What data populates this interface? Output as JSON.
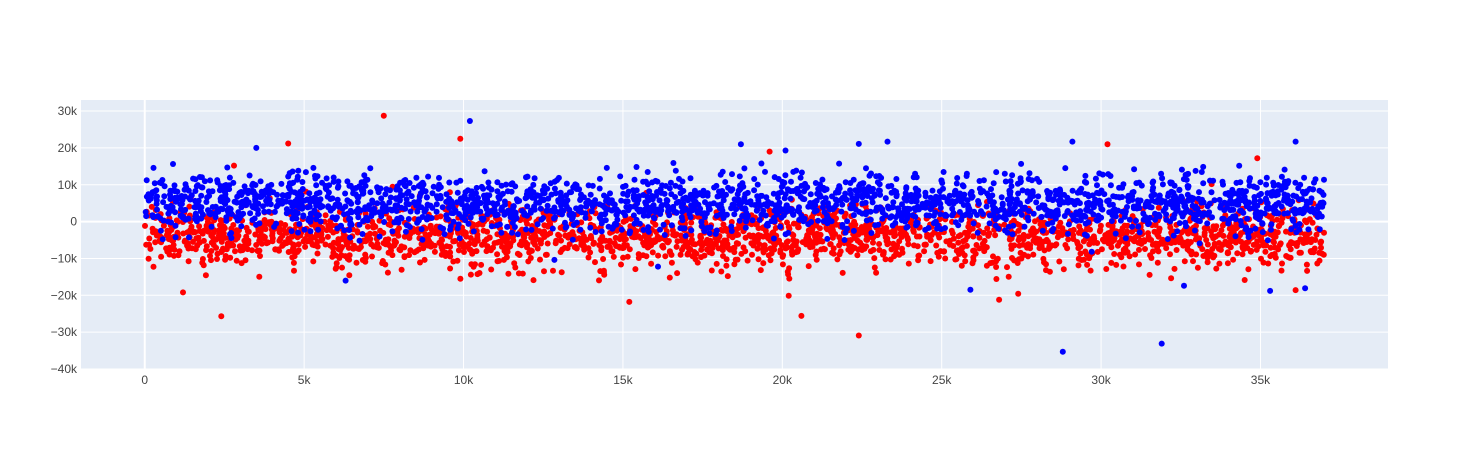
{
  "chart_data": {
    "type": "scatter",
    "title": "",
    "xlabel": "",
    "ylabel": "",
    "xlim": [
      -2000,
      39000
    ],
    "ylim": [
      -40000,
      33000
    ],
    "x_ticks": [
      0,
      5000,
      10000,
      15000,
      20000,
      25000,
      30000,
      35000
    ],
    "x_tick_labels": [
      "0",
      "5k",
      "10k",
      "15k",
      "20k",
      "25k",
      "30k",
      "35k"
    ],
    "y_ticks": [
      -40000,
      -30000,
      -20000,
      -10000,
      0,
      10000,
      20000,
      30000
    ],
    "y_tick_labels": [
      "−40k",
      "−30k",
      "−20k",
      "−10k",
      "0",
      "10k",
      "20k",
      "30k"
    ],
    "grid": true,
    "legend": "none",
    "x_count": 37000,
    "series": [
      {
        "color": "#ff0000",
        "band": {
          "center": -4000,
          "spread": 4000
        },
        "outliers": [
          [
            7500,
            28700
          ],
          [
            4500,
            21200
          ],
          [
            9900,
            22500
          ],
          [
            30200,
            21000
          ],
          [
            2400,
            -25700
          ],
          [
            22400,
            -30900
          ],
          [
            20600,
            -25600
          ],
          [
            15200,
            -21800
          ],
          [
            26800,
            -21200
          ],
          [
            27400,
            -19600
          ],
          [
            20200,
            -20100
          ],
          [
            1200,
            -19200
          ],
          [
            34900,
            17200
          ],
          [
            19600,
            19000
          ],
          [
            36100,
            -18600
          ],
          [
            2800,
            15200
          ]
        ]
      },
      {
        "color": "#0000ff",
        "band": {
          "center": 5000,
          "spread": 4000
        },
        "outliers": [
          [
            10200,
            27300
          ],
          [
            23300,
            21700
          ],
          [
            22400,
            21100
          ],
          [
            29100,
            21700
          ],
          [
            36100,
            21700
          ],
          [
            18700,
            21000
          ],
          [
            3500,
            20000
          ],
          [
            20100,
            19300
          ],
          [
            28800,
            -35300
          ],
          [
            31900,
            -33100
          ],
          [
            32600,
            -17400
          ],
          [
            6300,
            -16000
          ],
          [
            16100,
            -12200
          ],
          [
            25900,
            -18500
          ],
          [
            35300,
            -18800
          ],
          [
            36400,
            -18100
          ]
        ]
      }
    ]
  }
}
